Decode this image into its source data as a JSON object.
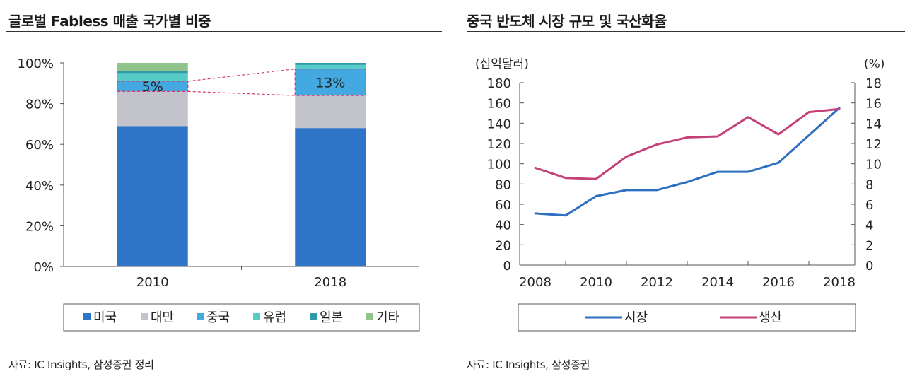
{
  "colors": {
    "us": "#2e75c8",
    "taiwan": "#c3c3cc",
    "china": "#43a9e0",
    "europe": "#57cbc8",
    "japan": "#2f9aa8",
    "other": "#8fc48a",
    "highlight": "#d23b73",
    "market_line": "#2e6fc0",
    "production_line": "#c53f78"
  },
  "left": {
    "title": "글로벌 Fabless 매출 국가별 비중",
    "source": "자료: IC Insights, 삼성증권 정리"
  },
  "right": {
    "title": "중국 반도체 시장 규모 및 국산화율",
    "source": "자료: IC Insights, 삼성증권"
  },
  "chart_data": [
    {
      "type": "bar",
      "stacked": true,
      "title": "글로벌 Fabless 매출 국가별 비중",
      "categories": [
        "2010",
        "2018"
      ],
      "series": [
        {
          "name": "미국",
          "values": [
            69,
            68
          ]
        },
        {
          "name": "대만",
          "values": [
            17,
            16
          ]
        },
        {
          "name": "중국",
          "values": [
            5,
            13
          ]
        },
        {
          "name": "유럽",
          "values": [
            4,
            2
          ]
        },
        {
          "name": "일본",
          "values": [
            1,
            1
          ]
        },
        {
          "name": "기타",
          "values": [
            4,
            0
          ]
        }
      ],
      "annotations": [
        {
          "category": "2010",
          "series": "중국",
          "label": "5%"
        },
        {
          "category": "2018",
          "series": "중국",
          "label": "13%"
        }
      ],
      "ylim": [
        0,
        100
      ],
      "yticks": [
        "0%",
        "20%",
        "40%",
        "60%",
        "80%",
        "100%"
      ],
      "legend": "bottom"
    },
    {
      "type": "line",
      "title": "중국 반도체 시장 규모 및 국산화율",
      "x": [
        2008,
        2009,
        2010,
        2011,
        2012,
        2013,
        2014,
        2015,
        2016,
        2017,
        2018
      ],
      "xticks": [
        "2008",
        "2010",
        "2012",
        "2014",
        "2016",
        "2018"
      ],
      "series": [
        {
          "name": "시장",
          "axis": "left",
          "values": [
            51,
            49,
            68,
            74,
            74,
            82,
            92,
            92,
            101,
            128,
            155
          ]
        },
        {
          "name": "생산",
          "axis": "right",
          "values": [
            9.6,
            8.6,
            8.5,
            10.7,
            11.9,
            12.6,
            12.7,
            14.6,
            12.9,
            15.1,
            15.4
          ]
        }
      ],
      "ylabel_left": "(십억달러)",
      "ylabel_right": "(%)",
      "ylim_left": [
        0,
        180
      ],
      "ylim_right": [
        0,
        18
      ],
      "yticks_left": [
        "0",
        "20",
        "40",
        "60",
        "80",
        "100",
        "120",
        "140",
        "160",
        "180"
      ],
      "yticks_right": [
        "0",
        "2",
        "4",
        "6",
        "8",
        "10",
        "12",
        "14",
        "16",
        "18"
      ],
      "legend": "bottom"
    }
  ]
}
